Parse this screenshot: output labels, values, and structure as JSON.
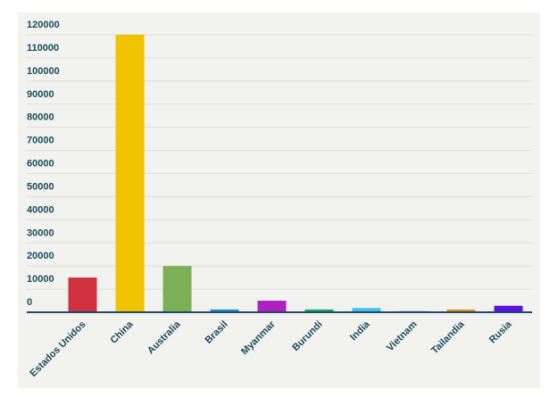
{
  "chart_data": {
    "type": "bar",
    "categories": [
      "Estados Unidos",
      "China",
      "Australia",
      "Brasil",
      "Myanmar",
      "Burundi",
      "India",
      "Vietnam",
      "Tailandia",
      "Rusia"
    ],
    "values": [
      15000,
      120000,
      20000,
      1200,
      5000,
      1200,
      1800,
      500,
      1200,
      2800
    ],
    "colors": [
      "#d1303f",
      "#f0c400",
      "#7bb056",
      "#1f8ccc",
      "#b01fc0",
      "#1aa860",
      "#40c0e8",
      "#8090a0",
      "#e09020",
      "#5a10e0"
    ],
    "ylim": [
      0,
      120000
    ],
    "yticks": [
      0,
      10000,
      20000,
      30000,
      40000,
      50000,
      60000,
      70000,
      80000,
      90000,
      100000,
      110000,
      120000
    ],
    "grid": true
  }
}
